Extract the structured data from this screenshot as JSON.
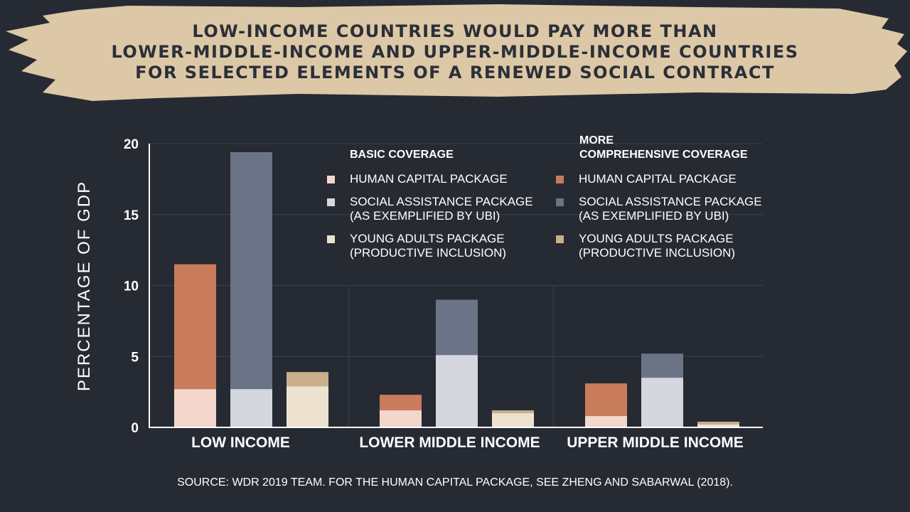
{
  "title_lines": [
    "LOW-INCOME COUNTRIES WOULD PAY MORE THAN",
    "LOWER-MIDDLE-INCOME AND UPPER-MIDDLE-INCOME COUNTRIES",
    "FOR SELECTED ELEMENTS OF A RENEWED SOCIAL CONTRACT"
  ],
  "source": "SOURCE: WDR 2019 TEAM. FOR THE HUMAN CAPITAL PACKAGE, SEE ZHENG AND SABARWAL (2018).",
  "colors": {
    "background": "#262a33",
    "banner": "#dcc8a6",
    "axis": "#ffffff",
    "grid": "#3b404a",
    "human_basic": "#f3d7cc",
    "human_comprehensive": "#c87c5a",
    "social_basic": "#d4d7de",
    "social_comprehensive": "#6a7486",
    "young_basic": "#ece2cf",
    "young_comprehensive": "#c9b08a"
  },
  "chart_data": {
    "type": "bar",
    "ylabel": "PERCENTAGE OF GDP",
    "xlabel": "",
    "ylim": [
      0,
      20
    ],
    "yticks": [
      0,
      5,
      10,
      15,
      20
    ],
    "grid": true,
    "categories": [
      "LOW INCOME",
      "LOWER MIDDLE INCOME",
      "UPPER MIDDLE INCOME"
    ],
    "packages": [
      {
        "key": "human",
        "basic_label": "HUMAN CAPITAL PACKAGE",
        "comprehensive_label": "HUMAN CAPITAL PACKAGE",
        "basic": [
          2.7,
          1.2,
          0.8
        ],
        "comprehensive": [
          11.5,
          2.3,
          3.1
        ]
      },
      {
        "key": "social",
        "basic_label": [
          "SOCIAL ASSISTANCE PACKAGE",
          "(AS EXEMPLIFIED BY UBI)"
        ],
        "comprehensive_label": [
          "SOCIAL ASSISTANCE PACKAGE",
          "(AS EXEMPLIFIED BY UBI)"
        ],
        "basic": [
          2.7,
          5.1,
          3.5
        ],
        "comprehensive": [
          19.4,
          9.0,
          5.2
        ]
      },
      {
        "key": "young",
        "basic_label": [
          "YOUNG ADULTS PACKAGE",
          "(PRODUCTIVE INCLUSION)"
        ],
        "comprehensive_label": [
          "YOUNG ADULTS PACKAGE",
          "(PRODUCTIVE INCLUSION)"
        ],
        "basic": [
          2.9,
          1.0,
          0.2
        ],
        "comprehensive": [
          3.9,
          1.2,
          0.4
        ]
      }
    ],
    "legend": {
      "placement": "top-right",
      "basic_heading": "BASIC COVERAGE",
      "comprehensive_heading": [
        "MORE",
        "COMPREHENSIVE COVERAGE"
      ]
    }
  }
}
